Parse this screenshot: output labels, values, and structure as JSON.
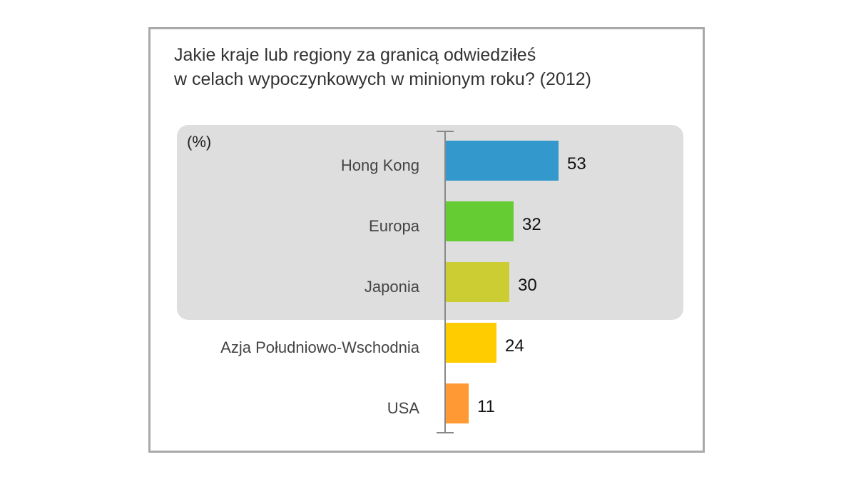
{
  "chart_data": {
    "type": "bar",
    "orientation": "horizontal",
    "title_lines": [
      "Jakie kraje lub regiony za granicą odwiedziłeś",
      "w celach wypoczynkowych w minionym roku? (2012)"
    ],
    "unit_label": "(%)",
    "categories": [
      "Hong Kong",
      "Europa",
      "Japonia",
      "Azja Południowo-Wschodnia",
      "USA"
    ],
    "values": [
      53,
      32,
      30,
      24,
      11
    ],
    "colors": [
      "#3399cc",
      "#66cc33",
      "#cccc33",
      "#ffcc00",
      "#ff9933"
    ],
    "highlighted_categories": [
      "Hong Kong",
      "Europa",
      "Japonia"
    ],
    "highlight_color": "#dedede",
    "xlim": [
      0,
      60
    ],
    "grid": false,
    "legend": "none"
  }
}
